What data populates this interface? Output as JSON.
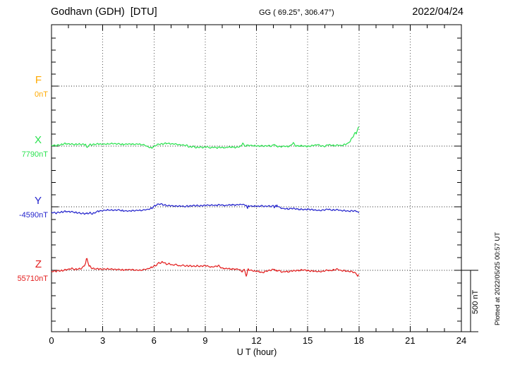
{
  "header": {
    "station_title": "Godhavn (GDH)  [DTU]",
    "coordinates": "GG ( 69.25°, 306.47°)",
    "date": "2022/04/24"
  },
  "footer": {
    "plotted_note": "Plotted at 2022/05/25 00:57 UT"
  },
  "scale_bar": {
    "label": "500 nT",
    "span_nT": 500
  },
  "chart_data": {
    "type": "line",
    "title": "Godhavn (GDH) [DTU] magnetogram, 2022/04/24",
    "xlabel": "U T (hour)",
    "ylabel": "",
    "x_range_hours": [
      0,
      24
    ],
    "x_ticks": [
      0,
      3,
      6,
      9,
      12,
      15,
      18,
      21,
      24
    ],
    "x_minor_tick_hours": 1,
    "y_minor_tick_nT": 100,
    "grid": "dotted verticals every 3 h; dotted horizontal baseline per component",
    "legend_position": "left-side component labels",
    "data_end_hour": 18,
    "series": [
      {
        "name": "F",
        "label": "F",
        "base_label": "0nT",
        "base_nT": 0,
        "color": "#ffaa00",
        "points": []
      },
      {
        "name": "X",
        "label": "X",
        "base_label": "7790nT",
        "base_nT": 7790,
        "color": "#2ae24f",
        "points": [
          [
            0,
            11
          ],
          [
            0.25,
            6
          ],
          [
            0.5,
            14
          ],
          [
            0.75,
            23
          ],
          [
            1,
            20
          ],
          [
            1.3,
            17
          ],
          [
            1.6,
            20
          ],
          [
            1.9,
            17
          ],
          [
            2,
            14
          ],
          [
            2.07,
            -17
          ],
          [
            2.15,
            11
          ],
          [
            2.4,
            17
          ],
          [
            2.7,
            20
          ],
          [
            3,
            17
          ],
          [
            3.3,
            20
          ],
          [
            3.6,
            23
          ],
          [
            3.9,
            20
          ],
          [
            4.2,
            17
          ],
          [
            4.5,
            20
          ],
          [
            4.8,
            17
          ],
          [
            5.1,
            20
          ],
          [
            5.4,
            14
          ],
          [
            5.7,
            -6
          ],
          [
            5.85,
            -12
          ],
          [
            6,
            0
          ],
          [
            6.2,
            17
          ],
          [
            6.5,
            20
          ],
          [
            6.75,
            26
          ],
          [
            7,
            23
          ],
          [
            7.3,
            20
          ],
          [
            7.6,
            14
          ],
          [
            7.9,
            9
          ],
          [
            8.1,
            -6
          ],
          [
            8.3,
            0
          ],
          [
            8.5,
            -9
          ],
          [
            8.7,
            -3
          ],
          [
            8.9,
            -9
          ],
          [
            9.1,
            -3
          ],
          [
            9.3,
            -11
          ],
          [
            9.5,
            -6
          ],
          [
            9.7,
            -11
          ],
          [
            9.9,
            -6
          ],
          [
            10.2,
            -9
          ],
          [
            10.5,
            -3
          ],
          [
            10.8,
            -9
          ],
          [
            11,
            -3
          ],
          [
            11.1,
            3
          ],
          [
            11.2,
            29
          ],
          [
            11.3,
            3
          ],
          [
            11.5,
            11
          ],
          [
            11.7,
            6
          ],
          [
            11.9,
            9
          ],
          [
            12.1,
            3
          ],
          [
            12.3,
            6
          ],
          [
            12.5,
            3
          ],
          [
            12.7,
            6
          ],
          [
            12.9,
            3
          ],
          [
            13.05,
            23
          ],
          [
            13.15,
            0
          ],
          [
            13.4,
            -3
          ],
          [
            13.6,
            3
          ],
          [
            13.8,
            0
          ],
          [
            14,
            3
          ],
          [
            14.15,
            29
          ],
          [
            14.3,
            3
          ],
          [
            14.5,
            6
          ],
          [
            14.75,
            3
          ],
          [
            15,
            0
          ],
          [
            15.2,
            6
          ],
          [
            15.45,
            11
          ],
          [
            15.6,
            17
          ],
          [
            15.75,
            6
          ],
          [
            16,
            0
          ],
          [
            16.2,
            14
          ],
          [
            16.4,
            11
          ],
          [
            16.6,
            9
          ],
          [
            16.8,
            9
          ],
          [
            17,
            9
          ],
          [
            17.2,
            17
          ],
          [
            17.35,
            26
          ],
          [
            17.5,
            46
          ],
          [
            17.65,
            80
          ],
          [
            17.78,
            115
          ],
          [
            17.85,
            104
          ],
          [
            17.95,
            150
          ],
          [
            18,
            155
          ]
        ]
      },
      {
        "name": "Y",
        "label": "Y",
        "base_label": "-4590nT",
        "base_nT": -4590,
        "color": "#2222cc",
        "points": [
          [
            0,
            -40
          ],
          [
            0.25,
            -49
          ],
          [
            0.5,
            -40
          ],
          [
            0.75,
            -35
          ],
          [
            1,
            -37
          ],
          [
            1.3,
            -40
          ],
          [
            1.6,
            -46
          ],
          [
            1.9,
            -52
          ],
          [
            2,
            -55
          ],
          [
            2.2,
            -46
          ],
          [
            2.4,
            -52
          ],
          [
            2.7,
            -35
          ],
          [
            3,
            -29
          ],
          [
            3.3,
            -23
          ],
          [
            3.6,
            -26
          ],
          [
            3.9,
            -23
          ],
          [
            4.2,
            -29
          ],
          [
            4.5,
            -32
          ],
          [
            4.8,
            -29
          ],
          [
            5.1,
            -26
          ],
          [
            5.4,
            -23
          ],
          [
            5.7,
            -17
          ],
          [
            5.9,
            -6
          ],
          [
            6.05,
            12
          ],
          [
            6.2,
            23
          ],
          [
            6.4,
            26
          ],
          [
            6.6,
            17
          ],
          [
            6.8,
            12
          ],
          [
            7,
            14
          ],
          [
            7.2,
            9
          ],
          [
            7.5,
            12
          ],
          [
            7.8,
            6
          ],
          [
            8.1,
            9
          ],
          [
            8.4,
            14
          ],
          [
            8.7,
            12
          ],
          [
            9,
            14
          ],
          [
            9.3,
            17
          ],
          [
            9.6,
            14
          ],
          [
            9.9,
            20
          ],
          [
            10.2,
            14
          ],
          [
            10.5,
            20
          ],
          [
            10.8,
            17
          ],
          [
            11,
            20
          ],
          [
            11.2,
            23
          ],
          [
            11.35,
            14
          ],
          [
            11.42,
            23
          ],
          [
            11.46,
            -23
          ],
          [
            11.52,
            12
          ],
          [
            11.7,
            6
          ],
          [
            11.9,
            12
          ],
          [
            12.1,
            6
          ],
          [
            12.3,
            12
          ],
          [
            12.5,
            6
          ],
          [
            12.7,
            9
          ],
          [
            12.9,
            6
          ],
          [
            13,
            17
          ],
          [
            13.05,
            -6
          ],
          [
            13.1,
            17
          ],
          [
            13.15,
            0
          ],
          [
            13.2,
            12
          ],
          [
            13.4,
            -6
          ],
          [
            13.6,
            -12
          ],
          [
            13.9,
            -14
          ],
          [
            14.2,
            -12
          ],
          [
            14.5,
            -17
          ],
          [
            14.8,
            -20
          ],
          [
            15.1,
            -17
          ],
          [
            15.4,
            -23
          ],
          [
            15.7,
            -26
          ],
          [
            16,
            -23
          ],
          [
            16.2,
            -17
          ],
          [
            16.4,
            -23
          ],
          [
            16.6,
            -20
          ],
          [
            16.9,
            -26
          ],
          [
            17.2,
            -29
          ],
          [
            17.5,
            -32
          ],
          [
            17.7,
            -29
          ],
          [
            17.85,
            -32
          ],
          [
            17.95,
            -40
          ],
          [
            18,
            -52
          ]
        ]
      },
      {
        "name": "Z",
        "label": "Z",
        "base_label": "55710nT",
        "base_nT": 55710,
        "color": "#e31b1b",
        "points": [
          [
            0,
            -3
          ],
          [
            0.2,
            -6
          ],
          [
            0.5,
            0
          ],
          [
            0.8,
            6
          ],
          [
            1,
            11
          ],
          [
            1.2,
            17
          ],
          [
            1.35,
            11
          ],
          [
            1.5,
            14
          ],
          [
            1.7,
            17
          ],
          [
            1.85,
            29
          ],
          [
            2,
            58
          ],
          [
            2.05,
            103
          ],
          [
            2.12,
            80
          ],
          [
            2.2,
            40
          ],
          [
            2.35,
            23
          ],
          [
            2.5,
            17
          ],
          [
            2.7,
            14
          ],
          [
            3,
            11
          ],
          [
            3.3,
            14
          ],
          [
            3.6,
            11
          ],
          [
            3.9,
            9
          ],
          [
            4.2,
            6
          ],
          [
            4.5,
            9
          ],
          [
            4.8,
            6
          ],
          [
            5.1,
            3
          ],
          [
            5.4,
            9
          ],
          [
            5.6,
            14
          ],
          [
            5.8,
            23
          ],
          [
            6,
            37
          ],
          [
            6.15,
            46
          ],
          [
            6.3,
            69
          ],
          [
            6.4,
            58
          ],
          [
            6.5,
            75
          ],
          [
            6.6,
            63
          ],
          [
            6.75,
            52
          ],
          [
            6.9,
            58
          ],
          [
            7.1,
            46
          ],
          [
            7.3,
            52
          ],
          [
            7.5,
            40
          ],
          [
            7.7,
            46
          ],
          [
            7.9,
            37
          ],
          [
            8.1,
            40
          ],
          [
            8.3,
            35
          ],
          [
            8.5,
            40
          ],
          [
            8.7,
            37
          ],
          [
            9,
            40
          ],
          [
            9.2,
            35
          ],
          [
            9.4,
            29
          ],
          [
            9.6,
            35
          ],
          [
            9.8,
            40
          ],
          [
            9.95,
            23
          ],
          [
            10.1,
            20
          ],
          [
            10.3,
            17
          ],
          [
            10.55,
            14
          ],
          [
            10.8,
            12
          ],
          [
            11,
            9
          ],
          [
            11.15,
            -9
          ],
          [
            11.3,
            12
          ],
          [
            11.42,
            -52
          ],
          [
            11.5,
            17
          ],
          [
            11.6,
            3
          ],
          [
            11.8,
            0
          ],
          [
            12,
            -3
          ],
          [
            12.2,
            -9
          ],
          [
            12.35,
            -17
          ],
          [
            12.5,
            -6
          ],
          [
            12.7,
            0
          ],
          [
            12.9,
            6
          ],
          [
            13.05,
            17
          ],
          [
            13.15,
            -6
          ],
          [
            13.3,
            3
          ],
          [
            13.5,
            -12
          ],
          [
            13.7,
            -6
          ],
          [
            13.9,
            -9
          ],
          [
            14.1,
            -3
          ],
          [
            14.3,
            0
          ],
          [
            14.5,
            3
          ],
          [
            14.75,
            6
          ],
          [
            15,
            0
          ],
          [
            15.3,
            -3
          ],
          [
            15.6,
            -6
          ],
          [
            15.9,
            -6
          ],
          [
            16.1,
            3
          ],
          [
            16.3,
            0
          ],
          [
            16.55,
            9
          ],
          [
            16.7,
            12
          ],
          [
            16.9,
            3
          ],
          [
            17.1,
            0
          ],
          [
            17.3,
            -3
          ],
          [
            17.5,
            -6
          ],
          [
            17.7,
            -12
          ],
          [
            17.85,
            -23
          ],
          [
            17.92,
            -46
          ],
          [
            18,
            -35
          ]
        ]
      }
    ]
  }
}
